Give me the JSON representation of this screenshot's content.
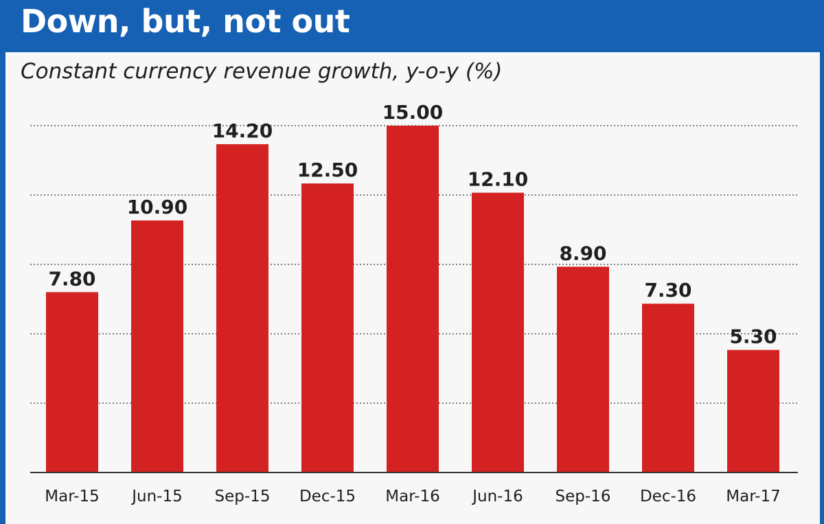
{
  "chart_data": {
    "type": "bar",
    "title": "Down, but, not out",
    "subtitle": "Constant currency revenue growth, y-o-y (%)",
    "categories": [
      "Mar-15",
      "Jun-15",
      "Sep-15",
      "Dec-15",
      "Mar-16",
      "Jun-16",
      "Sep-16",
      "Dec-16",
      "Mar-17"
    ],
    "values": [
      7.8,
      10.9,
      14.2,
      12.5,
      15.0,
      12.1,
      8.9,
      7.3,
      5.3
    ],
    "value_labels": [
      "7.80",
      "10.90",
      "14.20",
      "12.50",
      "15.00",
      "12.10",
      "8.90",
      "7.30",
      "5.30"
    ],
    "ylim": [
      0,
      15
    ],
    "grid": true,
    "colors": {
      "bar": "#d42121",
      "header": "#1661b3",
      "grid": "#555555"
    }
  }
}
